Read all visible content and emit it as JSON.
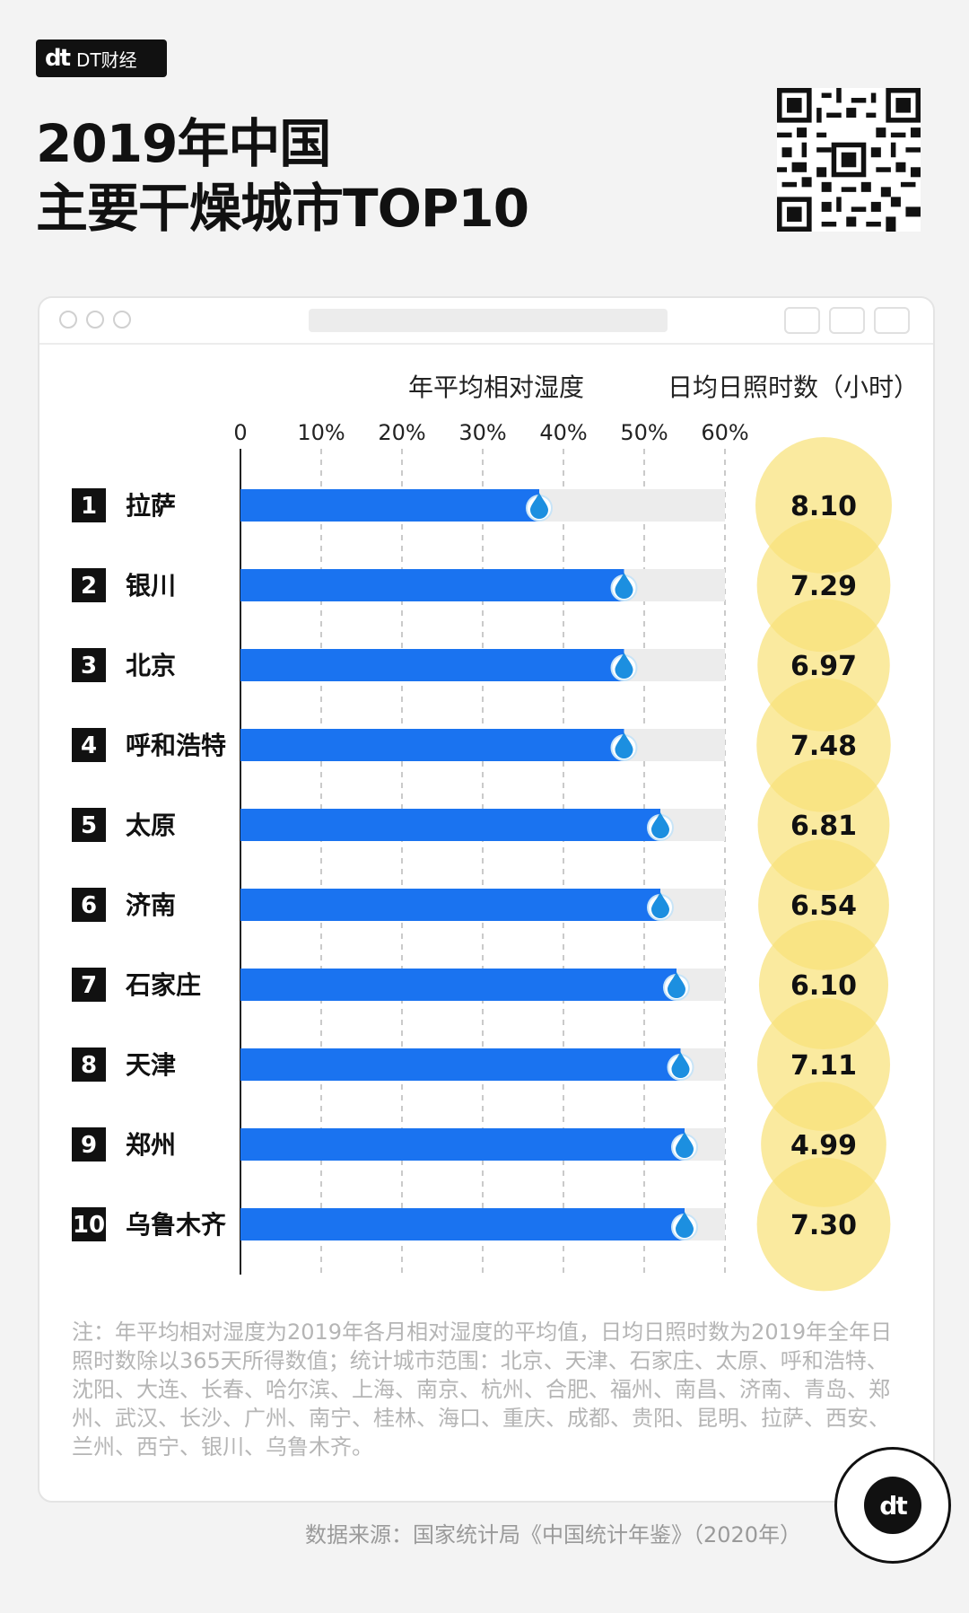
{
  "brand": {
    "mark": "dt",
    "name": "DT财经"
  },
  "title": {
    "line1": "2019年中国",
    "line2": "主要干燥城市TOP10"
  },
  "chart_data": {
    "type": "bar",
    "orientation": "horizontal",
    "series": [
      {
        "name": "年平均相对湿度",
        "unit": "%",
        "values": [
          37,
          47.5,
          47.5,
          47.5,
          52,
          52,
          54,
          54.5,
          55,
          55
        ]
      },
      {
        "name": "日均日照时数（小时）",
        "values": [
          8.1,
          7.29,
          6.97,
          7.48,
          6.81,
          6.54,
          6.1,
          7.11,
          4.99,
          7.3
        ]
      }
    ],
    "ranks": [
      "1",
      "2",
      "3",
      "4",
      "5",
      "6",
      "7",
      "8",
      "9",
      "10"
    ],
    "categories": [
      "拉萨",
      "银川",
      "北京",
      "呼和浩特",
      "太原",
      "济南",
      "石家庄",
      "天津",
      "郑州",
      "乌鲁木齐"
    ],
    "sunshine_labels": [
      "8.10",
      "7.29",
      "6.97",
      "7.48",
      "6.81",
      "6.54",
      "6.10",
      "7.11",
      "4.99",
      "7.30"
    ],
    "x_ticks": [
      "0",
      "10%",
      "20%",
      "30%",
      "40%",
      "50%",
      "60%"
    ],
    "x_tick_values": [
      0,
      10,
      20,
      30,
      40,
      50,
      60
    ],
    "xlim": [
      0,
      60
    ],
    "colors": {
      "bar": "#1a73f0",
      "track": "#ececec",
      "circle": "#f8e27a",
      "drop": "#1c8fe0"
    }
  },
  "note": "注：年平均相对湿度为2019年各月相对湿度的平均值，日均日照时数为2019年全年日照时数除以365天所得数值；统计城市范围：北京、天津、石家庄、太原、呼和浩特、沈阳、大连、长春、哈尔滨、上海、南京、杭州、合肥、福州、南昌、济南、青岛、郑州、武汉、长沙、广州、南宁、桂林、海口、重庆、成都、贵阳、昆明、拉萨、西安、兰州、西宁、银川、乌鲁木齐。",
  "source": "数据来源：国家统计局《中国统计年鉴》（2020年）"
}
